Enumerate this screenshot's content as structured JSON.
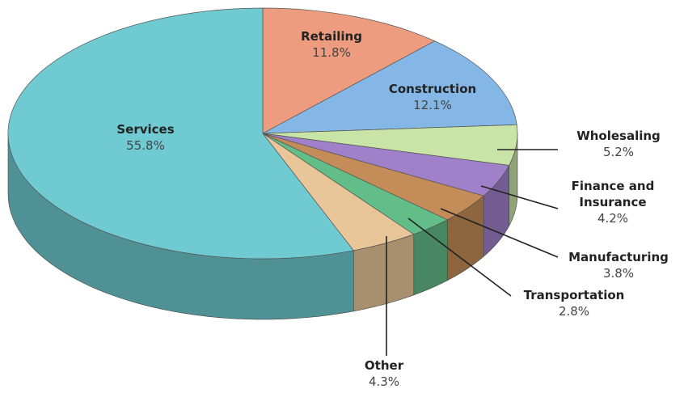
{
  "chart_data": {
    "type": "pie",
    "categories": [
      "Retailing",
      "Construction",
      "Wholesaling",
      "Finance and Insurance",
      "Manufacturing",
      "Transportation",
      "Other",
      "Services"
    ],
    "values": [
      11.8,
      12.1,
      5.2,
      4.2,
      3.8,
      2.8,
      4.3,
      55.8
    ],
    "value_labels": [
      "11.8%",
      "12.1%",
      "5.2%",
      "4.2%",
      "3.8%",
      "2.8%",
      "4.3%",
      "55.8%"
    ],
    "colors": [
      "#ee9c80",
      "#84b6e6",
      "#c8e4a6",
      "#9f80c9",
      "#c48c58",
      "#62bd88",
      "#e9c699",
      "#6fcad1"
    ]
  }
}
